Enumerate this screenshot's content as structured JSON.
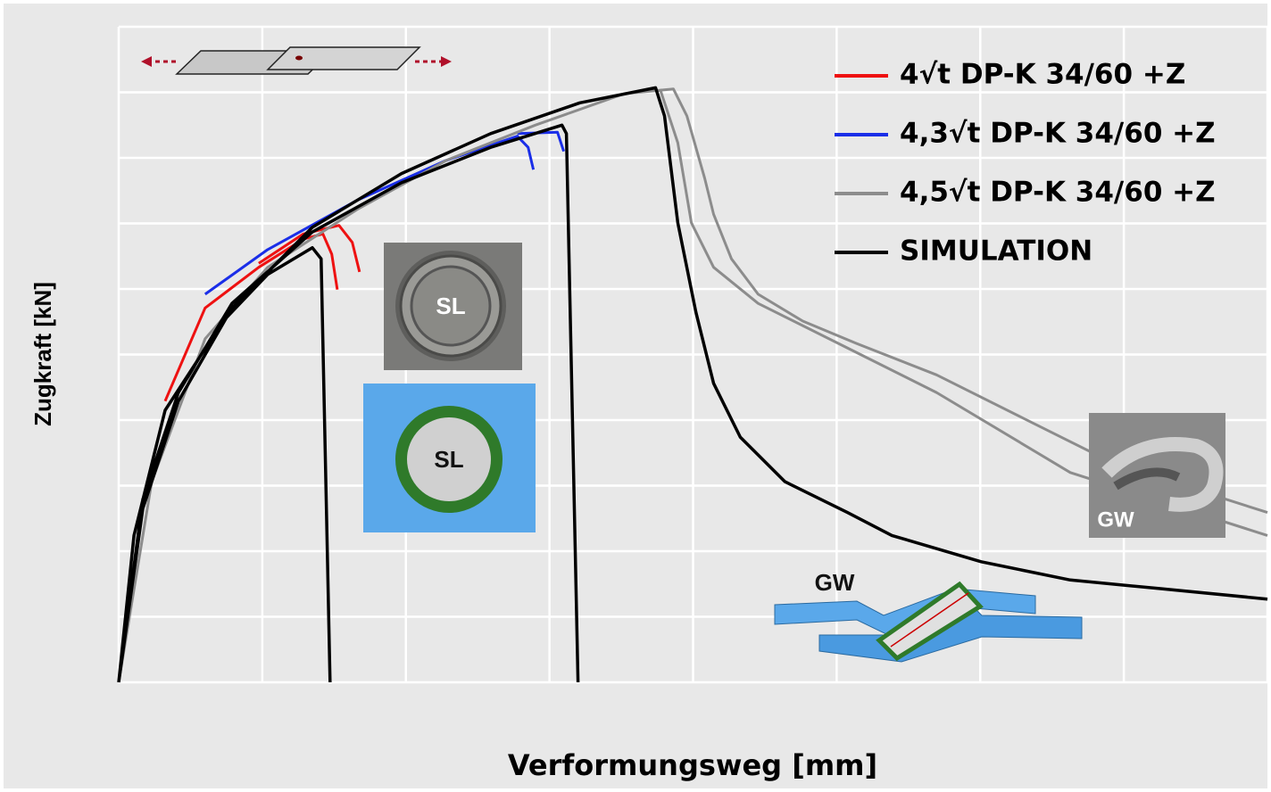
{
  "chart_data": {
    "type": "line",
    "xlabel": "Verformungsweg [mm]",
    "ylabel": "Zugkraft  [kN]",
    "xlim": [
      0,
      8
    ],
    "ylim": [
      0,
      10
    ],
    "xticks": [
      0,
      1,
      2,
      3,
      4,
      5,
      6,
      7,
      8
    ],
    "yticks": [
      0,
      1,
      2,
      3,
      4,
      5,
      6,
      7,
      8,
      9,
      10
    ],
    "grid": true,
    "legend": "upper right",
    "annotations": [
      "SL",
      "SL",
      "GW",
      "GW"
    ],
    "series": [
      {
        "name": "4√t DP-K 34/60 +Z",
        "color": "#ee1111",
        "x": [
          0.323,
          0.602,
          0.975,
          1.286,
          1.422,
          1.484,
          1.522,
          null,
          0.975,
          1.286,
          1.534,
          1.627,
          1.677
        ],
        "values": [
          4.29,
          5.71,
          6.33,
          6.76,
          6.84,
          6.53,
          5.99,
          null,
          6.39,
          6.84,
          6.97,
          6.71,
          6.26
        ]
      },
      {
        "name": "4,3√t DP-K 34/60 +Z",
        "color": "#1a2ee8",
        "x": [
          0.602,
          1.037,
          1.658,
          2.28,
          2.776,
          2.851,
          2.888,
          null,
          2.776,
          3.056,
          3.099
        ],
        "values": [
          5.92,
          6.6,
          7.35,
          7.96,
          8.33,
          8.16,
          7.82,
          null,
          8.37,
          8.39,
          8.1
        ]
      },
      {
        "name": "4,5√t DP-K 34/60 +Z",
        "color": "#8c8c8c",
        "x": [
          0,
          0.23,
          0.602,
          1.037,
          1.658,
          2.28,
          2.901,
          3.522,
          3.863,
          3.957,
          4.081,
          4.143,
          4.267,
          4.453,
          4.764,
          5.137,
          5.696,
          6.317,
          6.938,
          8.0,
          null,
          3.77,
          3.894,
          3.988,
          4.143,
          4.453,
          5.075,
          5.696,
          6.627,
          8.0
        ],
        "values": [
          0,
          3.06,
          5.24,
          6.33,
          7.21,
          7.96,
          8.5,
          8.98,
          9.05,
          8.64,
          7.69,
          7.14,
          6.46,
          5.92,
          5.51,
          5.17,
          4.69,
          4.01,
          3.33,
          2.59,
          null,
          9.05,
          8.23,
          7.01,
          6.33,
          5.78,
          5.1,
          4.42,
          3.2,
          2.24
        ]
      },
      {
        "name": "SIMULATION",
        "color": "#000000",
        "x": [
          0,
          0.106,
          0.323,
          0.727,
          1.037,
          1.348,
          1.41,
          1.472,
          null,
          0,
          0.168,
          0.416,
          0.789,
          1.348,
          1.969,
          2.59,
          3.087,
          3.118,
          3.199,
          null,
          0,
          0.168,
          0.416,
          0.789,
          1.348,
          1.969,
          2.59,
          3.211,
          3.739,
          3.801,
          3.894,
          4.019,
          4.143,
          4.329,
          4.64,
          5.075,
          5.385,
          6.006,
          6.627,
          7.248,
          8.0
        ],
        "values": [
          0,
          2.24,
          4.15,
          5.51,
          6.22,
          6.63,
          6.46,
          0,
          null,
          0,
          2.79,
          4.42,
          5.78,
          6.87,
          7.62,
          8.16,
          8.5,
          8.37,
          0,
          null,
          0,
          2.65,
          4.29,
          5.71,
          6.94,
          7.76,
          8.37,
          8.84,
          9.07,
          8.64,
          7.01,
          5.65,
          4.56,
          3.74,
          3.06,
          2.59,
          2.24,
          1.84,
          1.56,
          1.43,
          1.27
        ]
      }
    ]
  }
}
